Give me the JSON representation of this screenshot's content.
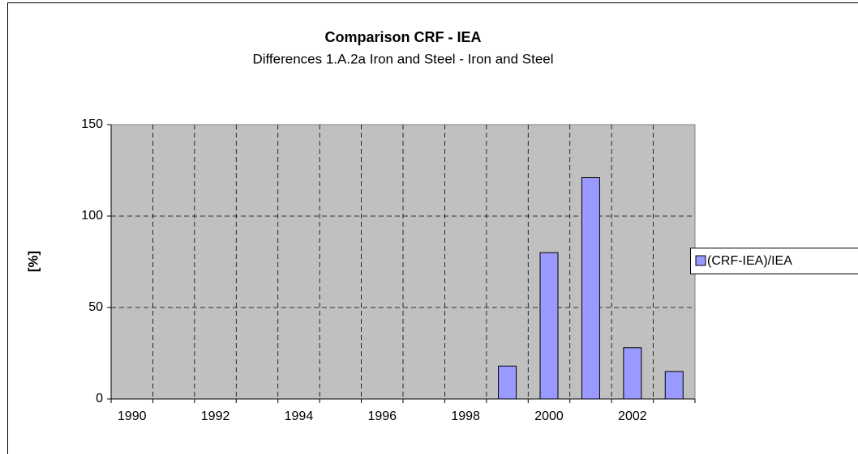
{
  "chart_data": {
    "type": "bar",
    "title": "Comparison CRF - IEA",
    "subtitle": "Differences 1.A.2a Iron and Steel - Iron and Steel",
    "y_label": "[%]",
    "categories": [
      "1990",
      null,
      "1992",
      null,
      "1994",
      null,
      "1996",
      null,
      "1998",
      null,
      "2000",
      null,
      "2002",
      null
    ],
    "series": [
      {
        "name": "(CRF-IEA)/IEA",
        "color": "#9999ff",
        "values": [
          0,
          0,
          0,
          0,
          0,
          0,
          0,
          0,
          0,
          18,
          80,
          121,
          28,
          15
        ]
      }
    ],
    "ylim": [
      0,
      150
    ],
    "yticks": [
      0,
      50,
      100,
      150
    ],
    "grid": true,
    "legend": "right"
  }
}
